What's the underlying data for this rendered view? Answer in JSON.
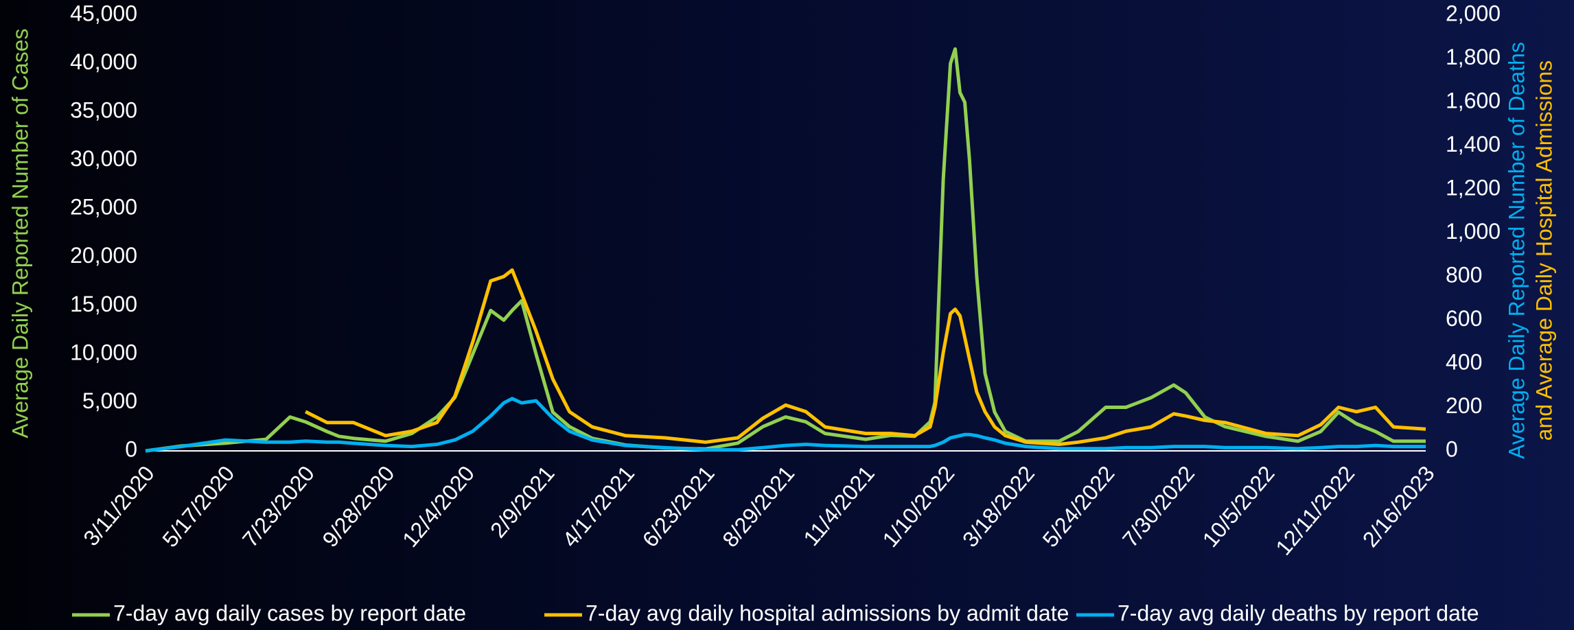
{
  "chart_data": {
    "type": "line",
    "y_label": "Average Daily Reported Number of Cases",
    "y2_label": [
      "Average Daily Reported Number of Deaths",
      "and Average Daily Hospital Admissions"
    ],
    "x": [
      "3/11/2020",
      "4/10/2020",
      "5/17/2020",
      "6/20/2020",
      "7/10/2020",
      "7/23/2020",
      "8/10/2020",
      "8/20/2020",
      "9/1/2020",
      "9/28/2020",
      "10/20/2020",
      "11/10/2020",
      "11/25/2020",
      "12/10/2020",
      "12/25/2020",
      "1/5/2021",
      "1/12/2021",
      "1/20/2021",
      "2/1/2021",
      "2/15/2021",
      "3/1/2021",
      "3/20/2021",
      "4/17/2021",
      "5/20/2021",
      "6/23/2021",
      "7/20/2021",
      "8/10/2021",
      "8/29/2021",
      "9/15/2021",
      "10/1/2021",
      "11/4/2021",
      "11/25/2021",
      "12/15/2021",
      "12/28/2021",
      "1/1/2022",
      "1/8/2022",
      "1/14/2022",
      "1/18/2022",
      "1/22/2022",
      "1/26/2022",
      "1/30/2022",
      "2/5/2022",
      "2/12/2022",
      "2/20/2022",
      "3/1/2022",
      "3/18/2022",
      "4/15/2022",
      "5/1/2022",
      "5/24/2022",
      "6/10/2022",
      "7/1/2022",
      "7/20/2022",
      "7/30/2022",
      "8/15/2022",
      "9/1/2022",
      "10/5/2022",
      "11/1/2022",
      "11/20/2022",
      "12/5/2022",
      "12/20/2022",
      "1/5/2023",
      "1/20/2023",
      "2/16/2023"
    ],
    "xlim": [
      "3/11/2020",
      "2/16/2023"
    ],
    "xticks": [
      "3/11/2020",
      "5/17/2020",
      "7/23/2020",
      "9/28/2020",
      "12/4/2020",
      "2/9/2021",
      "4/17/2021",
      "6/23/2021",
      "8/29/2021",
      "11/4/2021",
      "1/10/2022",
      "3/18/2022",
      "5/24/2022",
      "7/30/2022",
      "10/5/2022",
      "12/11/2022",
      "2/16/2023"
    ],
    "ylim": [
      0,
      45000
    ],
    "yticks": [
      0,
      {
        "value": 5000,
        "label": "5,000"
      },
      {
        "value": 10000,
        "label": "10,000"
      },
      {
        "value": 15000,
        "label": "15,000"
      },
      {
        "value": 20000,
        "label": "20,000"
      },
      {
        "value": 25000,
        "label": "25,000"
      },
      {
        "value": 30000,
        "label": "30,000"
      },
      {
        "value": 35000,
        "label": "35,000"
      },
      {
        "value": 40000,
        "label": "40,000"
      },
      {
        "value": 45000,
        "label": "45,000"
      }
    ],
    "y2lim": [
      0,
      2000
    ],
    "y2ticks": [
      0,
      200,
      400,
      600,
      800,
      {
        "value": 1000,
        "label": "1,000"
      },
      {
        "value": 1200,
        "label": "1,200"
      },
      {
        "value": 1400,
        "label": "1,400"
      },
      {
        "value": 1600,
        "label": "1,600"
      },
      {
        "value": 1800,
        "label": "1,800"
      },
      {
        "value": 2000,
        "label": "2,000"
      }
    ],
    "legend": "bottom",
    "series": [
      {
        "name": "7-day avg daily cases by report date",
        "color": "#92d050",
        "values": [
          0,
          500,
          800,
          1200,
          3500,
          3000,
          2000,
          1500,
          1300,
          1000,
          1800,
          3500,
          5500,
          10000,
          14500,
          13500,
          14500,
          15500,
          10000,
          4000,
          2500,
          1300,
          600,
          300,
          200,
          800,
          2500,
          3500,
          3000,
          1800,
          1200,
          1600,
          1500,
          3000,
          5000,
          28000,
          40000,
          41500,
          37000,
          36000,
          30000,
          18000,
          8000,
          4000,
          2000,
          1000,
          1000,
          2000,
          4500,
          4500,
          5500,
          6800,
          6000,
          3500,
          2500,
          1500,
          1000,
          2000,
          4000,
          2800,
          2000,
          1000,
          1000
        ]
      },
      {
        "name": "7-day avg daily hospital admissions by admit date",
        "color": "#ffc000",
        "axis": "y2",
        "values": [
          null,
          null,
          null,
          null,
          null,
          180,
          130,
          130,
          130,
          70,
          90,
          130,
          250,
          500,
          780,
          800,
          830,
          720,
          550,
          330,
          180,
          110,
          70,
          60,
          40,
          60,
          150,
          210,
          180,
          110,
          80,
          80,
          70,
          110,
          200,
          450,
          630,
          650,
          620,
          520,
          420,
          270,
          180,
          110,
          70,
          40,
          30,
          40,
          60,
          90,
          110,
          170,
          160,
          140,
          130,
          80,
          70,
          120,
          200,
          180,
          200,
          110,
          100
        ]
      },
      {
        "name": "7-day avg daily deaths by report date",
        "color": "#00b0f0",
        "axis": "y2",
        "values": [
          0,
          20,
          50,
          40,
          40,
          45,
          40,
          40,
          35,
          25,
          20,
          30,
          50,
          90,
          160,
          220,
          240,
          220,
          230,
          150,
          90,
          50,
          25,
          15,
          5,
          5,
          15,
          25,
          30,
          25,
          20,
          20,
          20,
          20,
          25,
          40,
          60,
          65,
          70,
          75,
          75,
          70,
          60,
          50,
          35,
          20,
          10,
          10,
          10,
          15,
          15,
          20,
          20,
          20,
          15,
          15,
          10,
          15,
          20,
          20,
          25,
          20,
          20
        ]
      }
    ]
  }
}
